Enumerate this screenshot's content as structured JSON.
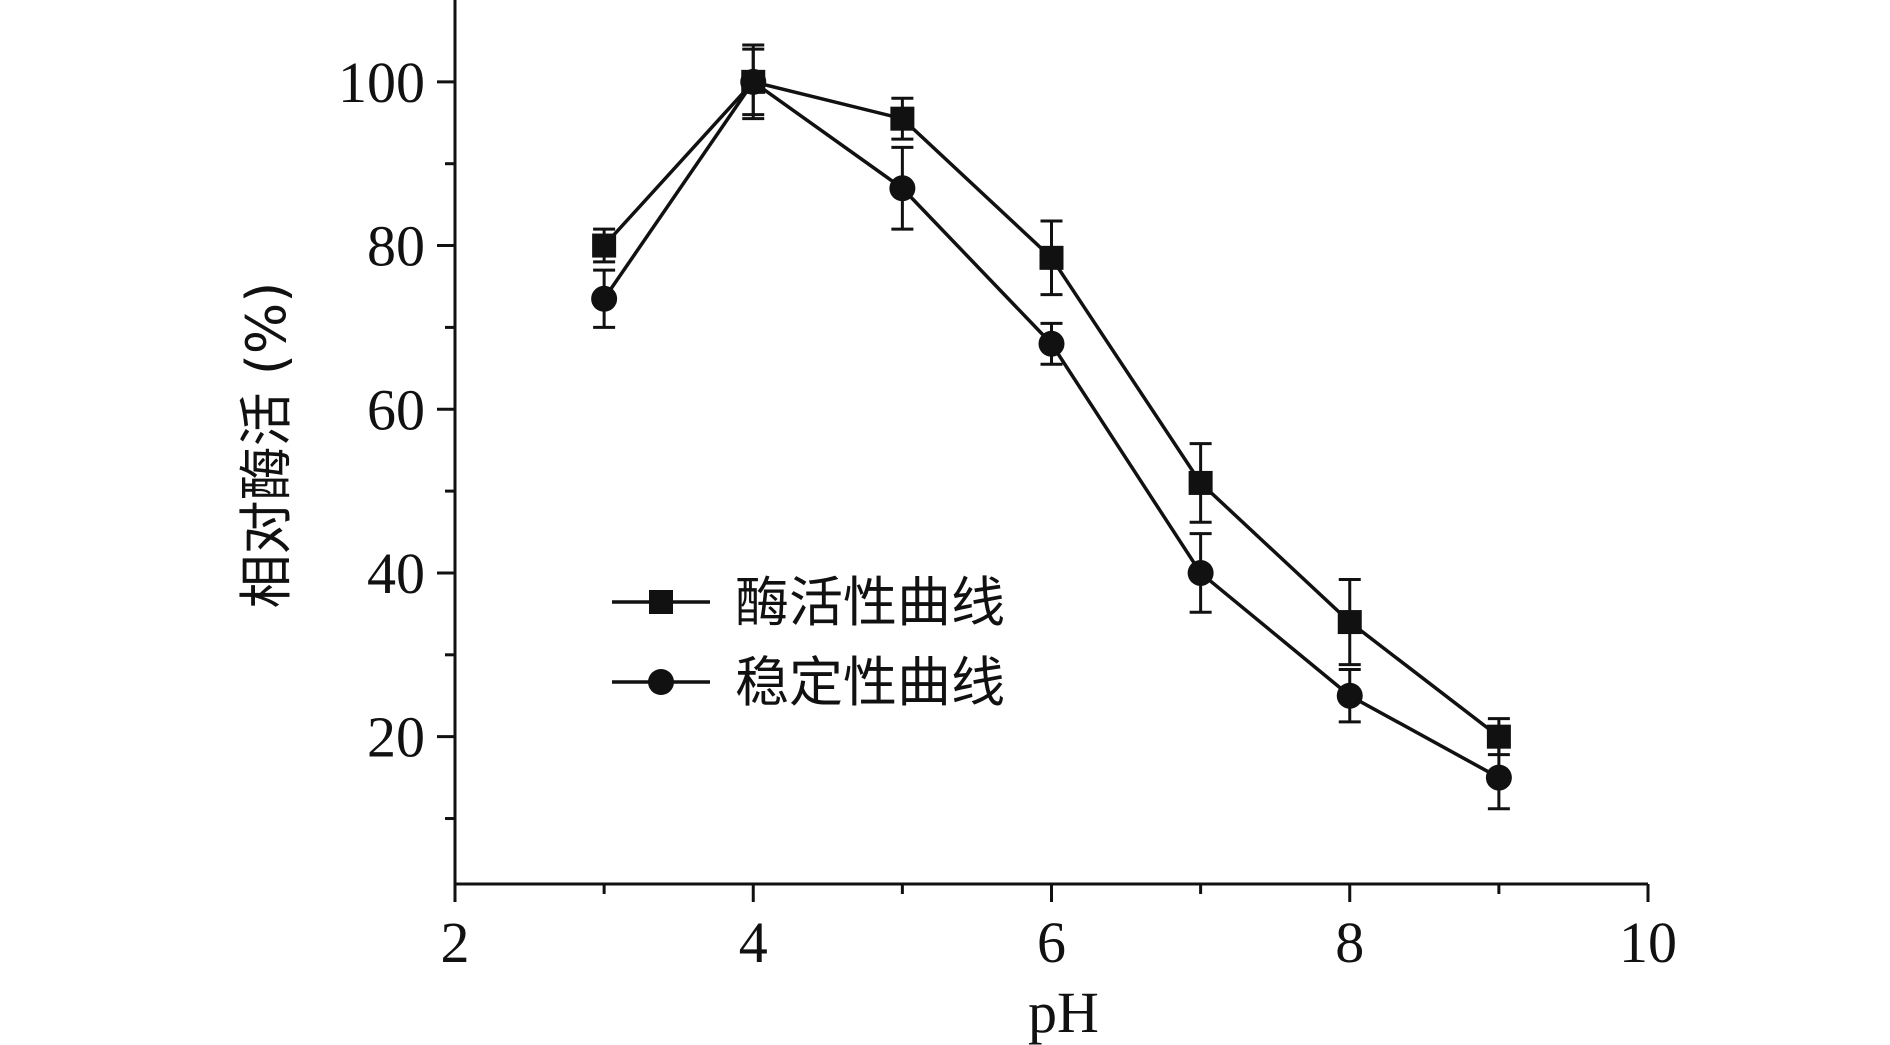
{
  "chart_data": {
    "type": "line",
    "xlabel": "pH",
    "ylabel": "相对酶活 (%)",
    "xlim": [
      2,
      10
    ],
    "ylim": [
      2,
      110
    ],
    "x_ticks": [
      2,
      4,
      6,
      8,
      10
    ],
    "y_ticks": [
      20,
      40,
      60,
      80,
      100
    ],
    "grid": false,
    "legend_position": "center-left",
    "colors": {
      "series": "#111111"
    },
    "series": [
      {
        "name": "酶活性曲线",
        "marker": "square",
        "x": [
          3,
          4,
          5,
          6,
          7,
          8,
          9
        ],
        "y": [
          80,
          100,
          95.5,
          78.5,
          51,
          34,
          20
        ],
        "error": [
          2,
          4.5,
          2.5,
          4.5,
          4.8,
          5.2,
          2.2
        ]
      },
      {
        "name": "稳定性曲线",
        "marker": "circle",
        "x": [
          3,
          4,
          5,
          6,
          7,
          8,
          9
        ],
        "y": [
          73.5,
          100,
          87,
          68,
          40,
          25,
          15
        ],
        "error": [
          3.5,
          4,
          5,
          2.5,
          4.8,
          3.2,
          3.8
        ]
      }
    ]
  }
}
